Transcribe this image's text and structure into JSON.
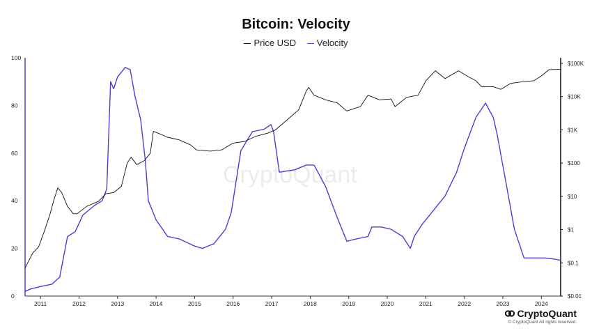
{
  "title": "Bitcoin: Velocity",
  "legend": [
    {
      "label": "Price USD",
      "color": "#111111"
    },
    {
      "label": "Velocity",
      "color": "#4a3fd1"
    }
  ],
  "watermark": "CryptoQuant",
  "brand": {
    "name": "CryptoQuant",
    "copyright": "© CryptoQuant All rights reserved."
  },
  "chart_data": {
    "type": "line",
    "title": "Bitcoin: Velocity",
    "x_range": [
      2010.6,
      2024.5
    ],
    "x_ticks": [
      "2011",
      "2012",
      "2013",
      "2014",
      "2015",
      "2016",
      "2017",
      "2018",
      "2019",
      "2020",
      "2021",
      "2022",
      "2023",
      "2024"
    ],
    "left_axis": {
      "range": [
        0,
        100
      ],
      "ticks": [
        "0",
        "20",
        "40",
        "60",
        "80",
        "100"
      ]
    },
    "right_axis": {
      "scale": "log",
      "range": [
        0.01,
        100000
      ],
      "ticks": [
        "$0.01",
        "$0.1",
        "$1",
        "$10",
        "$100",
        "$1K",
        "$10K",
        "$100K"
      ]
    },
    "grid": false,
    "legend_position": "top-center",
    "series": [
      {
        "name": "Velocity",
        "axis": "left",
        "color": "#4a3fd1",
        "x": [
          2010.6,
          2010.75,
          2011.0,
          2011.3,
          2011.5,
          2011.7,
          2011.9,
          2012.1,
          2012.4,
          2012.6,
          2012.72,
          2012.82,
          2012.9,
          2013.0,
          2013.2,
          2013.33,
          2013.45,
          2013.6,
          2013.72,
          2013.8,
          2013.9,
          2014.0,
          2014.3,
          2014.6,
          2015.0,
          2015.2,
          2015.5,
          2015.8,
          2015.95,
          2016.2,
          2016.5,
          2016.8,
          2016.98,
          2017.05,
          2017.2,
          2017.6,
          2017.9,
          2018.1,
          2018.4,
          2018.7,
          2018.95,
          2019.2,
          2019.5,
          2019.6,
          2019.85,
          2020.1,
          2020.4,
          2020.6,
          2020.7,
          2020.9,
          2021.2,
          2021.5,
          2021.8,
          2022.0,
          2022.3,
          2022.55,
          2022.75,
          2022.85,
          2023.1,
          2023.3,
          2023.55,
          2023.8,
          2024.1,
          2024.35,
          2024.5
        ],
        "values": [
          2,
          3,
          4,
          5,
          8,
          25,
          27,
          34,
          38,
          40,
          45,
          90,
          87,
          92,
          96,
          95,
          84,
          74,
          57,
          40,
          36,
          32,
          25,
          24,
          21,
          20,
          22,
          28,
          35,
          61,
          69,
          70,
          72,
          69,
          52,
          53,
          55,
          55,
          46,
          33,
          23,
          24,
          25,
          29,
          29,
          28,
          25,
          20,
          25,
          30,
          36,
          42,
          52,
          62,
          75,
          81,
          75,
          68,
          46,
          28,
          16,
          16,
          16,
          15.5,
          15
        ]
      },
      {
        "name": "Price USD",
        "axis": "right",
        "color": "#111111",
        "x": [
          2010.6,
          2010.8,
          2010.95,
          2011.1,
          2011.25,
          2011.35,
          2011.45,
          2011.55,
          2011.7,
          2011.85,
          2011.95,
          2012.2,
          2012.5,
          2012.7,
          2012.9,
          2013.1,
          2013.25,
          2013.35,
          2013.5,
          2013.7,
          2013.85,
          2013.93,
          2014.05,
          2014.3,
          2014.6,
          2014.9,
          2015.05,
          2015.4,
          2015.7,
          2016.0,
          2016.3,
          2016.6,
          2016.9,
          2017.1,
          2017.4,
          2017.7,
          2017.9,
          2017.96,
          2018.1,
          2018.4,
          2018.7,
          2018.95,
          2019.3,
          2019.5,
          2019.8,
          2020.1,
          2020.2,
          2020.5,
          2020.8,
          2021.0,
          2021.25,
          2021.5,
          2021.85,
          2022.1,
          2022.3,
          2022.45,
          2022.75,
          2022.95,
          2023.2,
          2023.5,
          2023.8,
          2024.0,
          2024.2,
          2024.5
        ],
        "values": [
          0.07,
          0.2,
          0.3,
          0.9,
          3,
          8,
          18,
          13,
          5,
          3,
          3,
          5,
          7,
          12,
          13,
          20,
          100,
          150,
          90,
          120,
          200,
          900,
          800,
          600,
          500,
          350,
          250,
          230,
          250,
          400,
          450,
          650,
          800,
          1000,
          2000,
          4000,
          15000,
          19000,
          11000,
          8000,
          6500,
          3700,
          5000,
          11000,
          8000,
          8500,
          5000,
          9500,
          11000,
          30000,
          60000,
          35000,
          60000,
          40000,
          30000,
          20000,
          20000,
          16500,
          25000,
          28000,
          30000,
          42000,
          65000,
          66000
        ]
      }
    ]
  }
}
